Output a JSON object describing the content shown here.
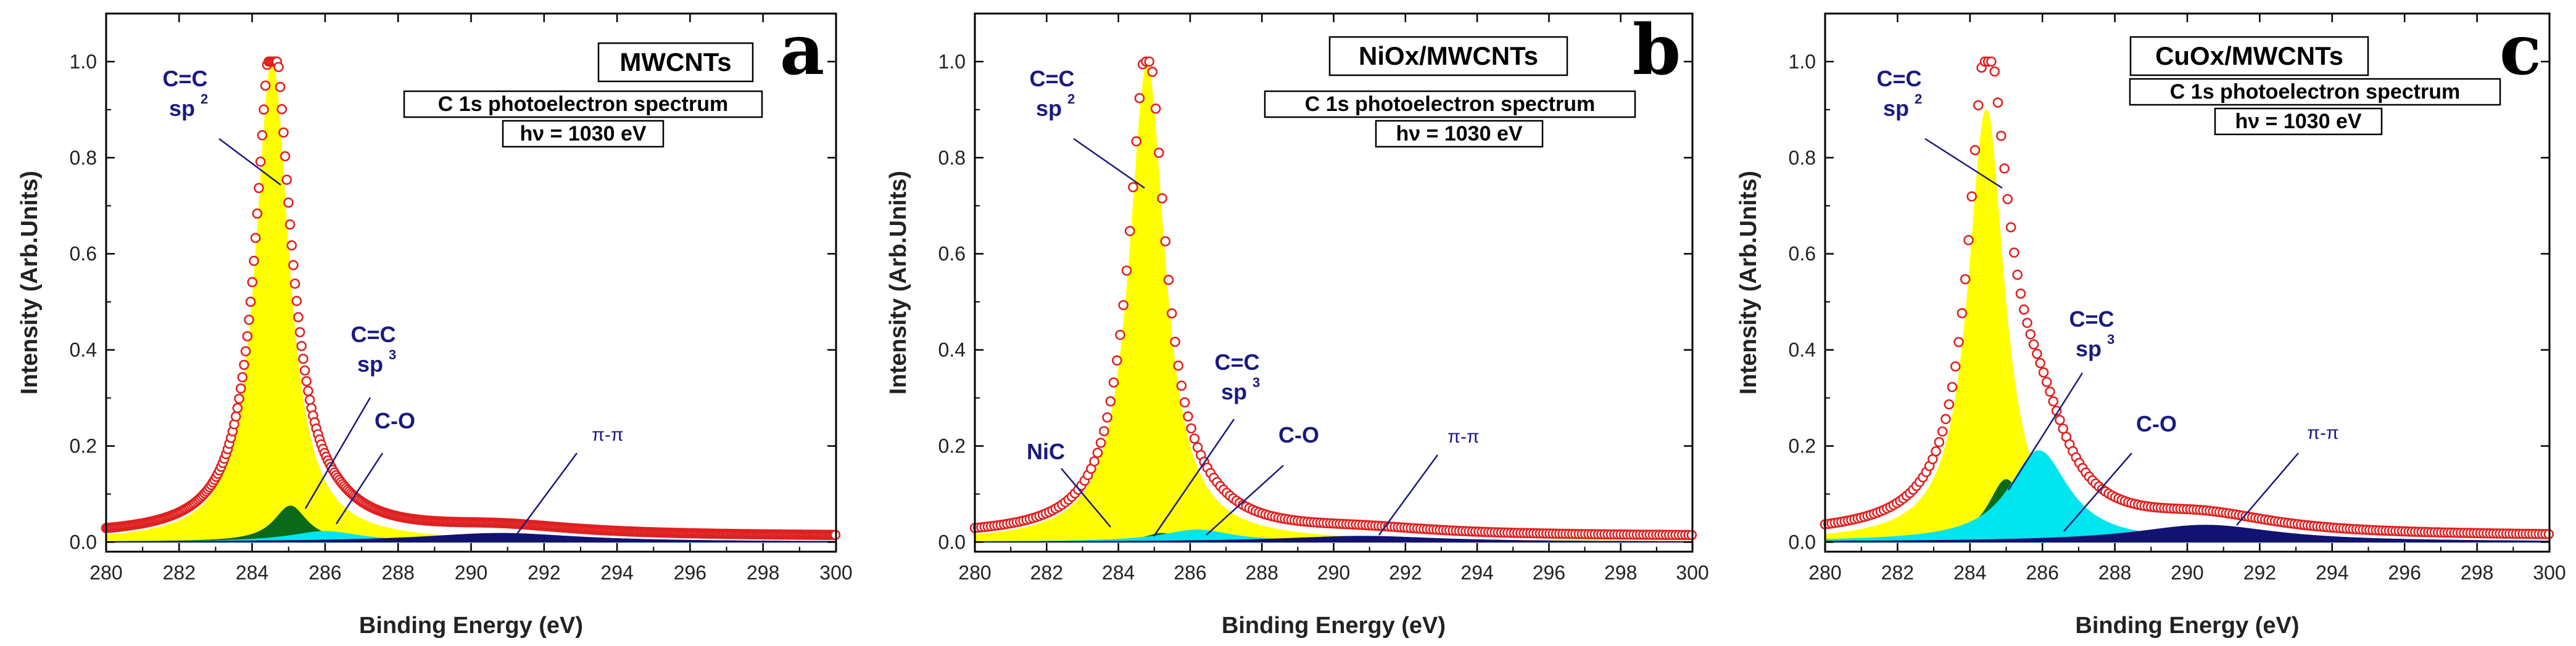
{
  "x_axis_label": "Binding Energy (eV)",
  "y_axis_label": "Intensity (Arb.Units)",
  "box_line1": "C 1s photoelectron spectrum",
  "box_line2": "hν = 1030 eV",
  "chart_data": [
    {
      "type": "line",
      "panel": "a",
      "title": "MWCNTs",
      "xlabel": "Binding Energy (eV)",
      "ylabel": "Intensity (Arb.Units)",
      "xlim": [
        280,
        300
      ],
      "ylim": [
        -0.02,
        1.1
      ],
      "xticks": [
        280,
        282,
        284,
        286,
        288,
        290,
        292,
        294,
        296,
        298,
        300
      ],
      "yticks": [
        0.0,
        0.2,
        0.4,
        0.6,
        0.8,
        1.0
      ],
      "series": [
        {
          "name": "Experimental data",
          "style": "open-circles",
          "color": "#e02020"
        },
        {
          "name": "C=C sp2",
          "center": 284.55,
          "height": 1.0,
          "width": 0.55,
          "color": "#ffff00"
        },
        {
          "name": "C=C sp3",
          "center": 285.05,
          "height": 0.075,
          "width": 0.55,
          "color": "#0a6a1a"
        },
        {
          "name": "C-O",
          "center": 286.0,
          "height": 0.022,
          "width": 1.2,
          "color": "#00e5ee"
        },
        {
          "name": "π-π",
          "center": 290.8,
          "height": 0.018,
          "width": 2.6,
          "color": "#121270"
        }
      ],
      "annotations": [
        {
          "label": "C=C",
          "sub": "sp",
          "sup": "2"
        },
        {
          "label": "C=C",
          "sub": "sp",
          "sup": "3"
        },
        {
          "label": "C-O"
        },
        {
          "label": "π-π"
        }
      ]
    },
    {
      "type": "line",
      "panel": "b",
      "title": "NiOx/MWCNTs",
      "xlabel": "Binding Energy (eV)",
      "ylabel": "Intensity (Arb.Units)",
      "xlim": [
        280,
        300
      ],
      "ylim": [
        -0.02,
        1.1
      ],
      "xticks": [
        280,
        282,
        284,
        286,
        288,
        290,
        292,
        294,
        296,
        298,
        300
      ],
      "yticks": [
        0.0,
        0.2,
        0.4,
        0.6,
        0.8,
        1.0
      ],
      "series": [
        {
          "name": "Experimental data",
          "style": "open-circles",
          "color": "#e02020"
        },
        {
          "name": "NiC",
          "center": 284.05,
          "height": 0.022,
          "width": 0.55,
          "color": "#ff00ff"
        },
        {
          "name": "C=C sp2",
          "center": 284.8,
          "height": 0.99,
          "width": 0.6,
          "color": "#ffff00"
        },
        {
          "name": "C=C sp3",
          "center": 285.2,
          "height": 0.018,
          "width": 0.55,
          "color": "#0a6a1a"
        },
        {
          "name": "C-O",
          "center": 286.2,
          "height": 0.025,
          "width": 1.2,
          "color": "#00e5ee"
        },
        {
          "name": "π-π",
          "center": 290.8,
          "height": 0.012,
          "width": 2.6,
          "color": "#121270"
        }
      ],
      "annotations": [
        {
          "label": "C=C",
          "sub": "sp",
          "sup": "2"
        },
        {
          "label": "C=C",
          "sub": "sp",
          "sup": "3"
        },
        {
          "label": "C-O"
        },
        {
          "label": "NiC"
        },
        {
          "label": "π-π"
        }
      ]
    },
    {
      "type": "line",
      "panel": "c",
      "title": "CuOx/MWCNTs",
      "xlabel": "Binding Energy (eV)",
      "ylabel": "Intensity (Arb.Units)",
      "xlim": [
        280,
        300
      ],
      "ylim": [
        -0.02,
        1.1
      ],
      "xticks": [
        280,
        282,
        284,
        286,
        288,
        290,
        292,
        294,
        296,
        298,
        300
      ],
      "yticks": [
        0.0,
        0.2,
        0.4,
        0.6,
        0.8,
        1.0
      ],
      "series": [
        {
          "name": "Experimental data",
          "style": "open-circles",
          "color": "#e02020"
        },
        {
          "name": "C=C sp2",
          "center": 284.45,
          "height": 0.9,
          "width": 0.6,
          "color": "#ffff00"
        },
        {
          "name": "C=C sp3",
          "center": 285.0,
          "height": 0.13,
          "width": 0.6,
          "color": "#0a6a1a"
        },
        {
          "name": "C-O",
          "center": 285.9,
          "height": 0.19,
          "width": 1.0,
          "color": "#00e5ee"
        },
        {
          "name": "π-π",
          "center": 290.5,
          "height": 0.035,
          "width": 2.4,
          "color": "#121270"
        }
      ],
      "annotations": [
        {
          "label": "C=C",
          "sub": "sp",
          "sup": "2"
        },
        {
          "label": "C=C",
          "sub": "sp",
          "sup": "3"
        },
        {
          "label": "C-O"
        },
        {
          "label": "π-π"
        }
      ]
    }
  ]
}
